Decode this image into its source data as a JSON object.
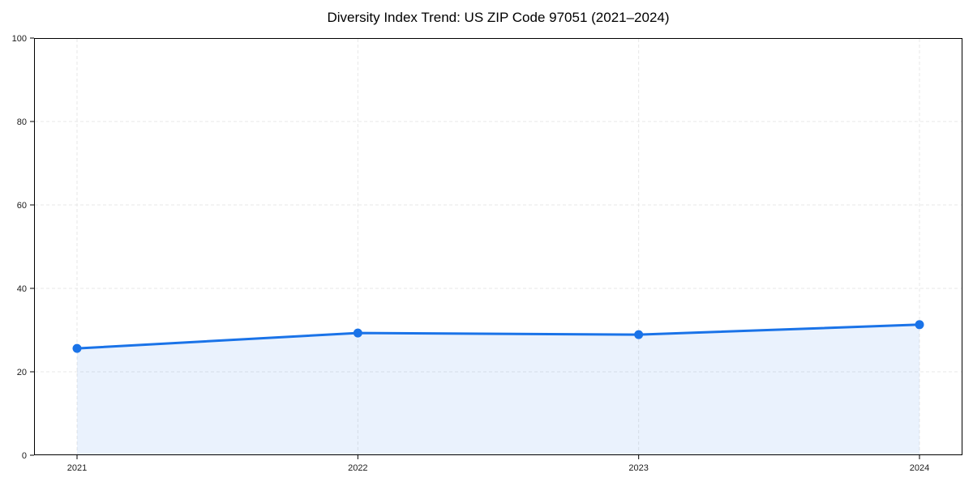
{
  "title": "Diversity Index Trend: US ZIP Code 97051 (2021–2024)",
  "chart_data": {
    "type": "line",
    "area_fill": true,
    "title": "Diversity Index Trend: US ZIP Code 97051 (2021–2024)",
    "x": [
      2021,
      2022,
      2023,
      2024
    ],
    "series": [
      {
        "name": "Diversity Index",
        "values": [
          25.6,
          29.3,
          28.9,
          31.3
        ]
      }
    ],
    "xlabel": "",
    "ylabel": "",
    "xticks": [
      "2021",
      "2022",
      "2023",
      "2024"
    ],
    "yticks": [
      0,
      20,
      40,
      60,
      80,
      100
    ],
    "ylim": [
      0,
      100
    ],
    "grid": true,
    "grid_style": "dashed",
    "legend": "none",
    "marker": "circle",
    "colors": {
      "line": "#1a73e8",
      "marker": "#1a73e8",
      "fill": "rgba(26,115,232,0.09)",
      "grid": "#e7e7e7",
      "axis": "#000000",
      "tick_label": "#1a1a1a",
      "background": "#ffffff"
    }
  }
}
